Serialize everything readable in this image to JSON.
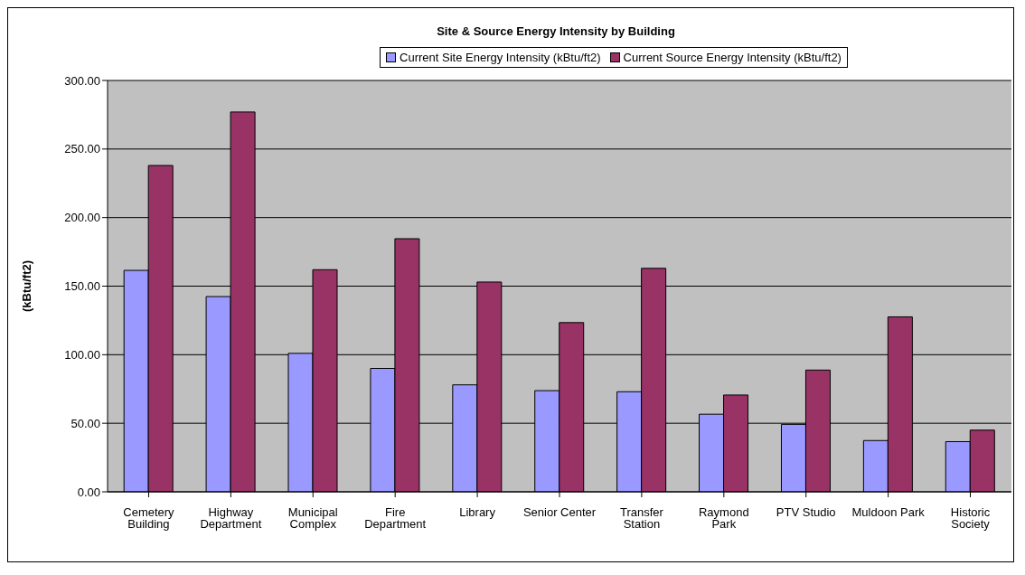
{
  "chart_data": {
    "type": "bar",
    "title": "Site & Source Energy Intensity by Building",
    "ylabel": "(kBtu/ft2)",
    "categories": [
      "Cemetery Building",
      "Highway Department",
      "Municipal Complex",
      "Fire Department",
      "Library",
      "Senior Center",
      "Transfer Station",
      "Raymond Park",
      "PTV Studio",
      "Muldoon Park",
      "Historic Society"
    ],
    "series": [
      {
        "name": "Current Site Energy Intensity (kBtu/ft2)",
        "color": "#9999ff",
        "values": [
          161.5,
          142.4,
          101,
          90,
          78,
          73.8,
          73,
          56.6,
          49.2,
          37.4,
          36.6
        ]
      },
      {
        "name": "Current Source Energy Intensity (kBtu/ft2)",
        "color": "#993366",
        "values": [
          238,
          277,
          162,
          184.6,
          153,
          123.4,
          163,
          70.6,
          88.8,
          127.6,
          45
        ]
      }
    ],
    "ylim": [
      0,
      300
    ],
    "yticks": [
      {
        "value": 0,
        "label": "0.00"
      },
      {
        "value": 50,
        "label": "50.00"
      },
      {
        "value": 100,
        "label": "100.00"
      },
      {
        "value": 150,
        "label": "150.00"
      },
      {
        "value": 200,
        "label": "200.00"
      },
      {
        "value": 250,
        "label": "250.00"
      },
      {
        "value": 300,
        "label": "300.00"
      }
    ],
    "grid": "y",
    "legend": "top"
  }
}
